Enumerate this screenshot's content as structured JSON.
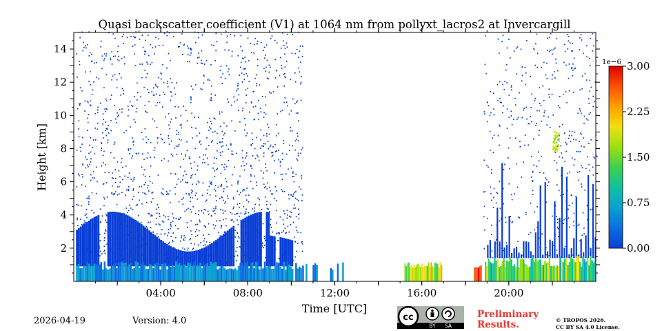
{
  "chart_data": {
    "type": "heatmap",
    "title": "Quasi backscatter coefficient (V1) at 1064 nm from pollyxt_lacros2 at Invercargill",
    "xlabel": "Time [UTC]",
    "ylabel": "Height [km]",
    "xlim_hours": [
      0,
      24
    ],
    "ylim_km": [
      0,
      15
    ],
    "x_ticks": [
      {
        "hour": 4,
        "label": "04:00"
      },
      {
        "hour": 8,
        "label": "08:00"
      },
      {
        "hour": 12,
        "label": "12:00"
      },
      {
        "hour": 16,
        "label": "16:00"
      },
      {
        "hour": 20,
        "label": "20:00"
      }
    ],
    "y_ticks": [
      {
        "value": 2,
        "label": "2"
      },
      {
        "value": 4,
        "label": "4"
      },
      {
        "value": 6,
        "label": "6"
      },
      {
        "value": 8,
        "label": "8"
      },
      {
        "value": 10,
        "label": "10"
      },
      {
        "value": 12,
        "label": "12"
      },
      {
        "value": 14,
        "label": "14"
      }
    ],
    "colorbar": {
      "range": [
        0,
        3.0
      ],
      "scale_label": "1e−6",
      "ticks": [
        {
          "value": 0.0,
          "label": "0.00"
        },
        {
          "value": 0.75,
          "label": "0.75"
        },
        {
          "value": 1.5,
          "label": "1.50"
        },
        {
          "value": 2.25,
          "label": "2.25"
        },
        {
          "value": 3.0,
          "label": "3.00"
        }
      ],
      "colormap": [
        "#0a3fd6",
        "#0a6ee0",
        "#0aa0d0",
        "#10c0a0",
        "#3fd050",
        "#9be010",
        "#f0e010",
        "#ffa000",
        "#ff5000",
        "#e00000"
      ]
    },
    "layers": [
      {
        "name": "boundary layer aerosol",
        "start_hour": 0.1,
        "end_hour": 13.0,
        "top_km": 1.0,
        "value": 0.3
      },
      {
        "name": "dense aerosol",
        "start_hour": 0.1,
        "end_hour": 10.0,
        "top_km": 4.0,
        "value": 0.15
      },
      {
        "name": "noise",
        "start_hour": 0.1,
        "end_hour": 10.5,
        "top_km": 15.0,
        "value": 0.05
      },
      {
        "name": "low cloud 16 UTC",
        "start_hour": 15.2,
        "end_hour": 16.9,
        "top_km": 1.1,
        "value": 1.5
      },
      {
        "name": "low cloud 18:30 UTC",
        "start_hour": 18.4,
        "end_hour": 18.7,
        "top_km": 1.0,
        "value": 2.5
      },
      {
        "name": "evening aerosol",
        "start_hour": 18.9,
        "end_hour": 24.0,
        "top_km": 1.4,
        "value": 1.2
      },
      {
        "name": "cirrus 22 UTC",
        "start_hour": 22.0,
        "end_hour": 22.3,
        "top_km": 9.0,
        "value": 1.4
      }
    ]
  },
  "footer": {
    "date": "2026-04-19",
    "version": "Version: 4.0",
    "preliminary_line1": "Preliminary",
    "preliminary_line2": "Results.",
    "copyright_line1": "© TROPOS 2026.",
    "copyright_line2": "CC BY SA 4.0 License.",
    "license_badge": {
      "icon": "cc-by-sa-icon",
      "labels": [
        "BY",
        "SA"
      ]
    }
  }
}
